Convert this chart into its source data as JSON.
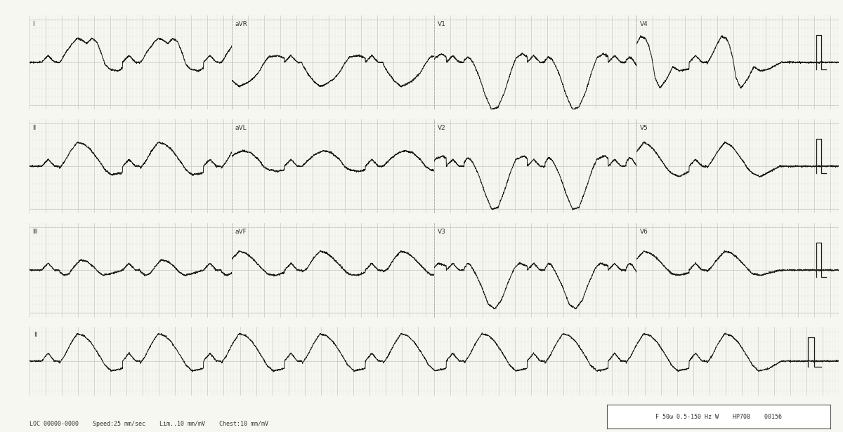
{
  "background_color": "#f5f5f0",
  "grid_color_major": "#c8c8c0",
  "grid_color_minor": "#e0e0d8",
  "line_color": "#1a1a1a",
  "paper_color": "#f7f7f2",
  "fig_width": 12.0,
  "fig_height": 6.16,
  "dpi": 100,
  "footer_text": "LOC 00000-0000    Speed:25 mm/sec    Lim..10 mm/mV    Chest:10 mm/mV",
  "footer_right": "F 50ω 0.5-150 Hz W    HP708    00156",
  "row_leads": [
    [
      "I",
      "aVR",
      "V1",
      "V4"
    ],
    [
      "II",
      "aVL",
      "V2",
      "V5"
    ],
    [
      "III",
      "aVF",
      "V3",
      "V6"
    ]
  ],
  "rhythm_label": "II"
}
